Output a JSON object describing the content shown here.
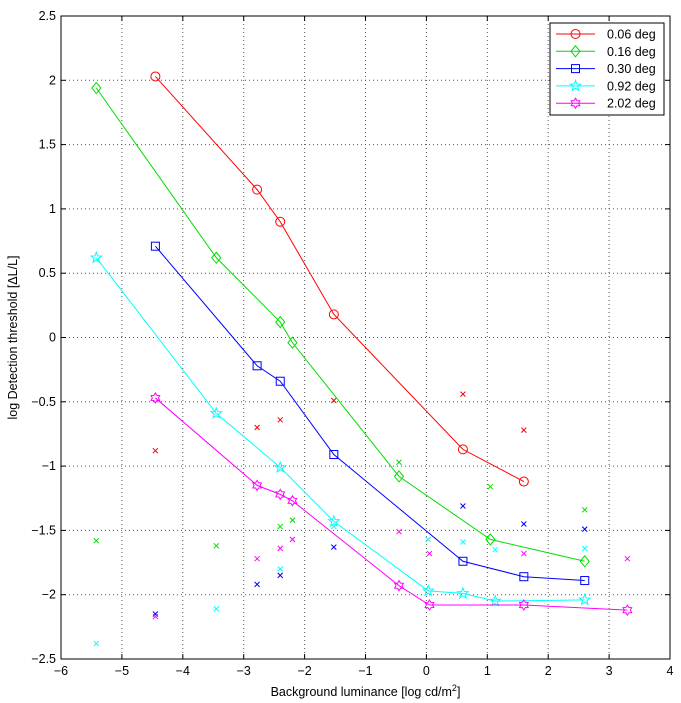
{
  "chart_data": {
    "type": "line",
    "xlabel": "Background luminance [log cd/m",
    "xlabel_sup": "2",
    "xlabel_end": "]",
    "ylabel": "log Detection threshold [ΔL/L]",
    "xlim": [
      -6,
      4
    ],
    "ylim": [
      -2.5,
      2.5
    ],
    "xticks": [
      -6,
      -5,
      -4,
      -3,
      -2,
      -1,
      0,
      1,
      2,
      3,
      4
    ],
    "xtick_labels": [
      "−6",
      "−5",
      "−4",
      "−3",
      "−2",
      "−1",
      "0",
      "1",
      "2",
      "3",
      "4"
    ],
    "yticks": [
      2.5,
      2,
      1.5,
      1,
      0.5,
      0,
      -0.5,
      -1,
      -1.5,
      -2,
      -2.5
    ],
    "ytick_labels": [
      "2.5",
      "2",
      "1.5",
      "1",
      "0.5",
      "0",
      "−0.5",
      "−1",
      "−1.5",
      "−2",
      "−2.5"
    ],
    "grid": true,
    "legend_position": "top-right",
    "series": [
      {
        "name": "0.06 deg",
        "color": "#ff0000",
        "marker": "circle",
        "points": [
          [
            -4.45,
            2.03
          ],
          [
            -2.78,
            1.15
          ],
          [
            -2.4,
            0.9
          ],
          [
            -1.52,
            0.18
          ],
          [
            0.6,
            -0.87
          ],
          [
            1.6,
            -1.12
          ]
        ],
        "extra": [
          [
            -4.45,
            -0.88
          ],
          [
            -2.78,
            -0.7
          ],
          [
            -2.4,
            -0.64
          ],
          [
            -1.52,
            -0.49
          ],
          [
            0.6,
            -0.44
          ],
          [
            1.6,
            -0.72
          ]
        ]
      },
      {
        "name": "0.16 deg",
        "color": "#00dd00",
        "marker": "diamond",
        "points": [
          [
            -5.42,
            1.94
          ],
          [
            -3.45,
            0.62
          ],
          [
            -2.4,
            0.12
          ],
          [
            -2.2,
            -0.04
          ],
          [
            -0.45,
            -1.08
          ],
          [
            1.05,
            -1.57
          ],
          [
            2.6,
            -1.74
          ]
        ],
        "extra": [
          [
            -5.42,
            -1.58
          ],
          [
            -3.45,
            -1.62
          ],
          [
            -2.4,
            -1.47
          ],
          [
            -2.2,
            -1.42
          ],
          [
            -0.45,
            -0.97
          ],
          [
            1.05,
            -1.16
          ],
          [
            2.6,
            -1.34
          ]
        ]
      },
      {
        "name": "0.30 deg",
        "color": "#0000ff",
        "marker": "square",
        "points": [
          [
            -4.45,
            0.71
          ],
          [
            -2.78,
            -0.22
          ],
          [
            -2.4,
            -0.34
          ],
          [
            -1.52,
            -0.91
          ],
          [
            0.6,
            -1.74
          ],
          [
            1.6,
            -1.86
          ],
          [
            2.6,
            -1.89
          ]
        ],
        "extra": [
          [
            -4.45,
            -2.15
          ],
          [
            -2.78,
            -1.92
          ],
          [
            -2.4,
            -1.85
          ],
          [
            -1.52,
            -1.63
          ],
          [
            0.6,
            -1.31
          ],
          [
            1.6,
            -1.45
          ],
          [
            2.6,
            -1.49
          ]
        ]
      },
      {
        "name": "0.92 deg",
        "color": "#00ffff",
        "marker": "star",
        "points": [
          [
            -5.42,
            0.62
          ],
          [
            -3.45,
            -0.59
          ],
          [
            -2.4,
            -1.01
          ],
          [
            -1.52,
            -1.43
          ],
          [
            0.03,
            -1.97
          ],
          [
            0.6,
            -1.99
          ],
          [
            1.13,
            -2.05
          ],
          [
            2.6,
            -2.04
          ]
        ],
        "extra": [
          [
            -5.42,
            -2.38
          ],
          [
            -3.45,
            -2.11
          ],
          [
            -2.4,
            -1.8
          ],
          [
            -1.52,
            -1.47
          ],
          [
            0.03,
            -1.57
          ],
          [
            0.6,
            -1.59
          ],
          [
            1.13,
            -1.65
          ],
          [
            2.6,
            -1.64
          ]
        ]
      },
      {
        "name": "2.02 deg",
        "color": "#ff00ff",
        "marker": "hexagram",
        "points": [
          [
            -4.45,
            -0.47
          ],
          [
            -2.78,
            -1.15
          ],
          [
            -2.4,
            -1.22
          ],
          [
            -2.2,
            -1.27
          ],
          [
            -0.45,
            -1.93
          ],
          [
            0.05,
            -2.08
          ],
          [
            1.6,
            -2.08
          ],
          [
            3.3,
            -2.12
          ]
        ],
        "extra": [
          [
            -4.45,
            -2.17
          ],
          [
            -2.78,
            -1.72
          ],
          [
            -2.4,
            -1.64
          ],
          [
            -2.2,
            -1.57
          ],
          [
            -0.45,
            -1.51
          ],
          [
            0.05,
            -1.68
          ],
          [
            1.6,
            -1.68
          ],
          [
            3.3,
            -1.72
          ]
        ]
      }
    ]
  }
}
